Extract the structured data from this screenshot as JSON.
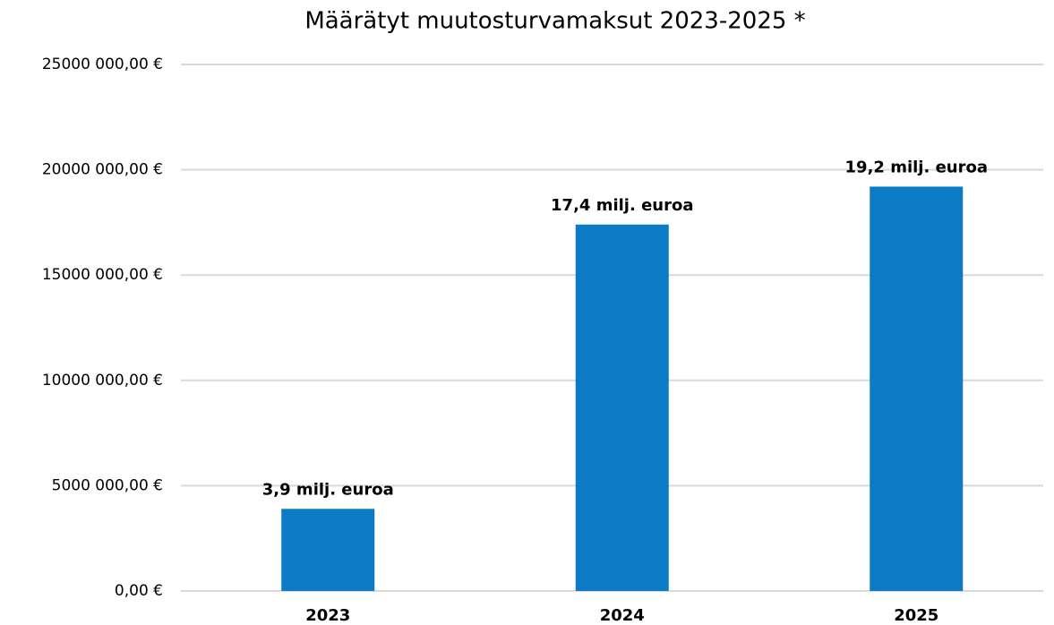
{
  "chart_data": {
    "type": "bar",
    "title": "Määrätyt muutosturvamaksut 2023-2025 *",
    "categories": [
      "2023",
      "2024",
      "2025"
    ],
    "values": [
      3900000,
      17400000,
      19200000
    ],
    "value_labels": [
      "3,9 milj. euroa",
      "17,4 milj. euroa",
      "19,2 milj. euroa"
    ],
    "color": "#0a7bc4",
    "ylim": [
      0,
      25000000
    ],
    "yticks": [
      {
        "value": 0,
        "label": "0,00 €"
      },
      {
        "value": 5000000,
        "label": "5000 000,00 €"
      },
      {
        "value": 10000000,
        "label": "10000 000,00 €"
      },
      {
        "value": 15000000,
        "label": "15000 000,00 €"
      },
      {
        "value": 20000000,
        "label": "20000 000,00 €"
      },
      {
        "value": 25000000,
        "label": "25000 000,00 €"
      }
    ],
    "grid": true
  }
}
